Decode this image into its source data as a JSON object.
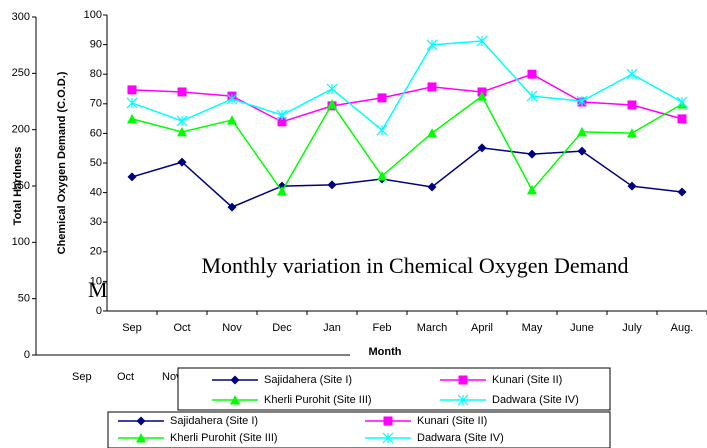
{
  "chart_data": [
    {
      "type": "line",
      "title": "M",
      "ylabel": "Total Hardness",
      "categories": [
        "Sep",
        "Oct",
        "Nov"
      ],
      "ylim": [
        0,
        300
      ],
      "yticks": [
        0,
        50,
        100,
        150,
        200,
        250,
        300
      ],
      "series": [
        {
          "name": "Sajidahera (Site I)",
          "color": "#000080",
          "marker": "diamond"
        },
        {
          "name": "Kunari (Site II)",
          "color": "#ff00ff",
          "marker": "square"
        },
        {
          "name": "Kherli Purohit (Site III)",
          "color": "#00ff00",
          "marker": "triangle"
        },
        {
          "name": "Dadwara (Site IV)",
          "color": "#00ffff",
          "marker": "star"
        }
      ]
    },
    {
      "type": "line",
      "title": "Monthly variation in Chemical Oxygen Demand",
      "xlabel": "Month",
      "ylabel": "Chemical Oxygen Demand (C.O.D.)",
      "categories": [
        "Sep",
        "Oct",
        "Nov",
        "Dec",
        "Jan",
        "Feb",
        "March",
        "April",
        "May",
        "June",
        "July",
        "Aug."
      ],
      "ylim": [
        0,
        100
      ],
      "yticks": [
        0,
        10,
        20,
        30,
        40,
        50,
        60,
        70,
        80,
        90,
        100
      ],
      "series": [
        {
          "name": "Sajidahera (Site I)",
          "color": "#000080",
          "marker": "diamond",
          "values": [
            45.3,
            50.3,
            35.1,
            42.2,
            42.6,
            44.6,
            41.9,
            55.1,
            53,
            54,
            42.2,
            40.2
          ]
        },
        {
          "name": "Kunari (Site II)",
          "color": "#ff00ff",
          "marker": "square",
          "values": [
            74.7,
            74,
            72.6,
            63.9,
            69.3,
            72,
            75.7,
            74,
            80,
            70.6,
            69.6,
            64.9
          ]
        },
        {
          "name": "Kherli Purohit (Site III)",
          "color": "#00ff00",
          "marker": "triangle",
          "values": [
            64.9,
            60.5,
            64.5,
            40.5,
            69.9,
            45.6,
            60.1,
            72.6,
            40.9,
            60.5,
            60.1,
            69.9
          ]
        },
        {
          "name": "Dadwara (Site IV)",
          "color": "#00ffff",
          "marker": "star",
          "values": [
            70.3,
            64.2,
            71.6,
            66.2,
            75,
            61.1,
            89.9,
            91.2,
            72.6,
            70.9,
            80,
            70.6
          ]
        }
      ]
    }
  ]
}
